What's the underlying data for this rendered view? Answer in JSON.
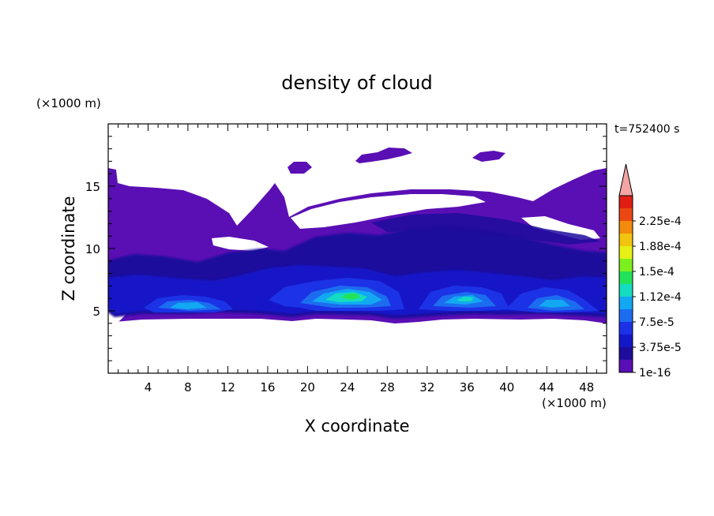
{
  "chart_data": {
    "type": "heatmap",
    "title": "density of cloud",
    "xlabel": "X coordinate",
    "ylabel": "Z coordinate",
    "x_unit": "(×1000 m)",
    "y_unit": "(×1000 m)",
    "time_label": "t=752400 s",
    "xlim": [
      0,
      50
    ],
    "ylim": [
      0,
      20
    ],
    "x_ticks": [
      4,
      8,
      12,
      16,
      20,
      24,
      28,
      32,
      36,
      40,
      44,
      48
    ],
    "y_ticks": [
      5,
      10,
      15
    ],
    "colorbar": {
      "levels": [
        1e-16,
        1.875e-05,
        3.75e-05,
        5.625e-05,
        7.5e-05,
        9.375e-05,
        0.0001125,
        0.00013125,
        0.00015,
        0.00016875,
        0.0001875,
        0.00020625,
        0.000225,
        0.00024375
      ],
      "labels": [
        "1e-16",
        "3.75e-5",
        "7.5e-5",
        "1.12e-4",
        "1.5e-4",
        "1.88e-4",
        "2.25e-4"
      ],
      "label_levels": [
        1e-16,
        3.75e-05,
        7.5e-05,
        0.0001125,
        0.00015,
        0.0001875,
        0.000225
      ],
      "colors": [
        "#5a0fb4",
        "#1e0c9c",
        "#1417c8",
        "#1c32e6",
        "#1c6cf0",
        "#12a8f2",
        "#14dcc0",
        "#22e25a",
        "#7cf01e",
        "#e6f014",
        "#f2c410",
        "#f28a0c",
        "#ea4812",
        "#e01e14"
      ],
      "overflow_color": "#f4a4a4",
      "extend": "max"
    },
    "regions": [
      {
        "name": "cloud-base-layer",
        "level": 0,
        "x": [
          0,
          50
        ],
        "z": [
          4.3,
          16.0
        ]
      },
      {
        "name": "dense-band-left",
        "level": 3,
        "x": [
          4,
          13
        ],
        "z": [
          4.8,
          6.0
        ]
      },
      {
        "name": "dense-core-center",
        "level": 7,
        "x": [
          19,
          29
        ],
        "z": [
          4.6,
          7.3
        ]
      },
      {
        "name": "dense-band-right-a",
        "level": 5,
        "x": [
          31,
          40
        ],
        "z": [
          4.6,
          6.7
        ]
      },
      {
        "name": "dense-band-right-b",
        "level": 4,
        "x": [
          40,
          49
        ],
        "z": [
          4.6,
          6.6
        ]
      }
    ]
  }
}
